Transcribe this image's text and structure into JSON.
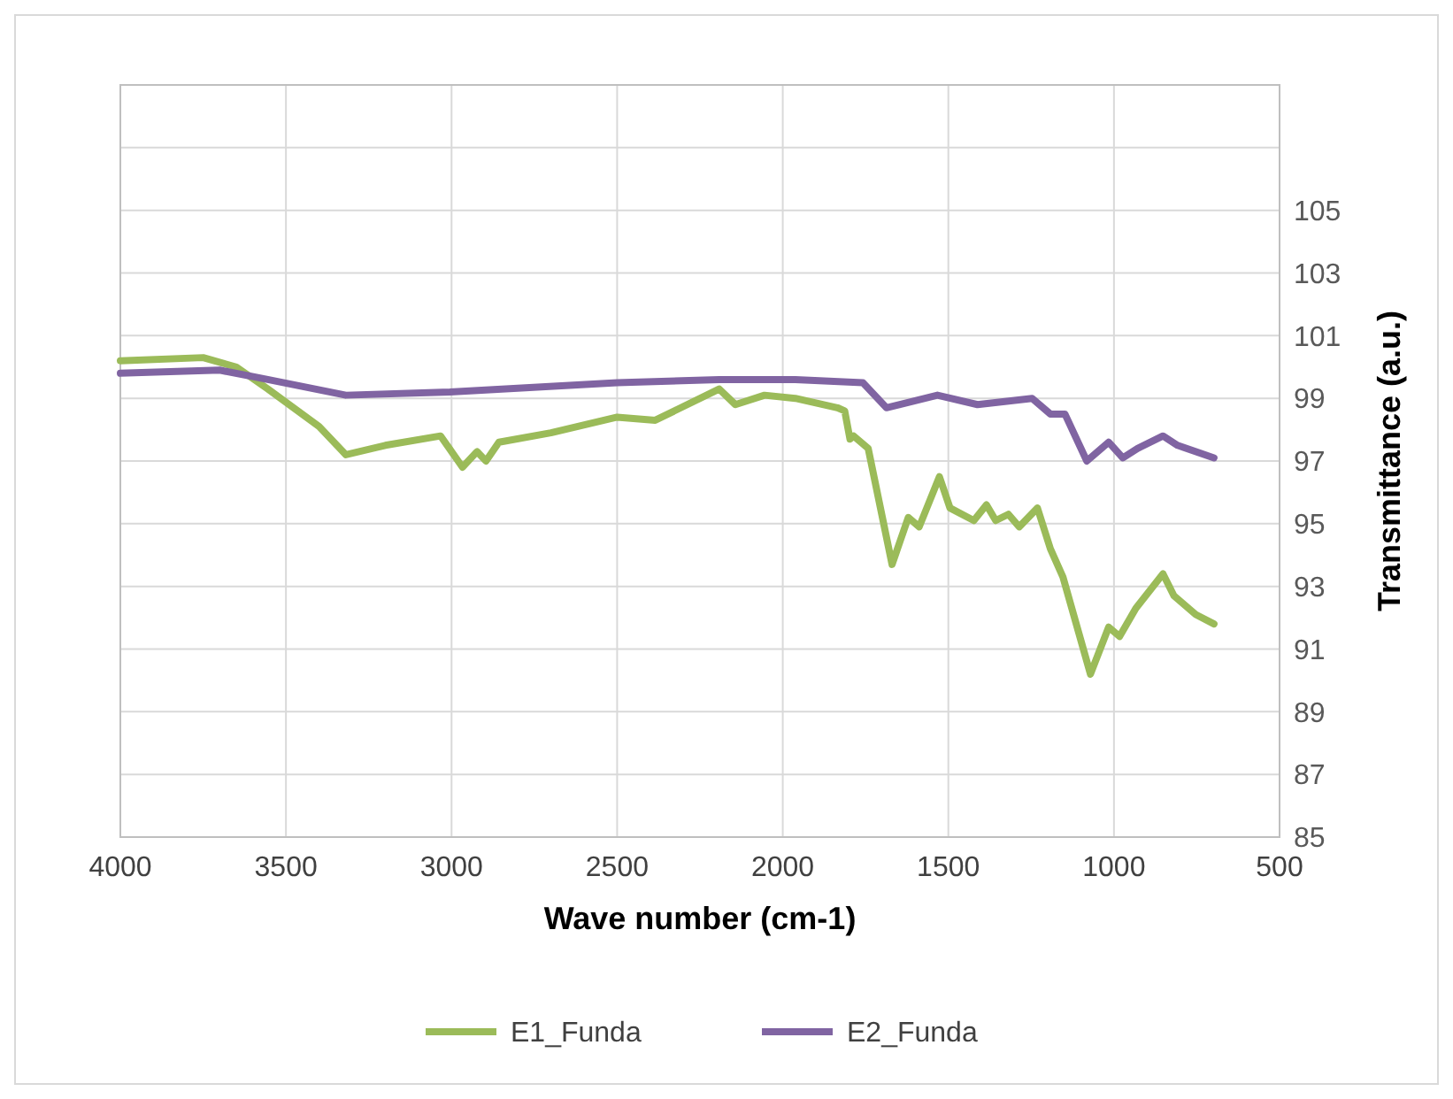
{
  "chart_data": {
    "type": "line",
    "xlabel": "Wave number (cm-1)",
    "ylabel": "Transmittance (a.u.)",
    "xlim": [
      4000,
      500
    ],
    "xticks": [
      4000,
      3500,
      3000,
      2500,
      2000,
      1500,
      1000,
      500
    ],
    "ylim": [
      85,
      109
    ],
    "yticks": [
      85,
      87,
      89,
      91,
      93,
      95,
      97,
      99,
      101,
      103,
      105,
      {
        "value": 107,
        "label": null
      }
    ],
    "grid": true,
    "legend": "bottom",
    "line_style": "solid",
    "marker": "none",
    "series": [
      {
        "name": "E1_Funda",
        "color": "#9bbb59",
        "x": [
          4000,
          3750,
          3650,
          3555,
          3400,
          3319,
          3200,
          3033,
          2967,
          2923,
          2896,
          2857,
          2700,
          2500,
          2385,
          2192,
          2143,
          2055,
          1962,
          1835,
          1813,
          1797,
          1786,
          1742,
          1670,
          1621,
          1588,
          1527,
          1495,
          1423,
          1385,
          1357,
          1319,
          1286,
          1231,
          1192,
          1154,
          1071,
          1016,
          983,
          934,
          852,
          819,
          753,
          698
        ],
        "values": [
          100.2,
          100.3,
          100.0,
          99.3,
          98.1,
          97.2,
          97.5,
          97.8,
          96.8,
          97.3,
          97.0,
          97.6,
          97.9,
          98.4,
          98.3,
          99.3,
          98.8,
          99.1,
          99.0,
          98.7,
          98.6,
          97.7,
          97.8,
          97.4,
          93.7,
          95.2,
          94.9,
          96.5,
          95.5,
          95.1,
          95.6,
          95.1,
          95.3,
          94.9,
          95.5,
          94.2,
          93.3,
          90.2,
          91.7,
          91.4,
          92.3,
          93.4,
          92.7,
          92.1,
          91.8
        ]
      },
      {
        "name": "E2_Funda",
        "color": "#8064a2",
        "x": [
          4000,
          3700,
          3555,
          3319,
          3005,
          2500,
          2192,
          2000,
          1962,
          1758,
          1687,
          1533,
          1412,
          1247,
          1192,
          1148,
          1082,
          1016,
          973,
          929,
          852,
          808,
          698
        ],
        "values": [
          99.8,
          99.9,
          99.6,
          99.1,
          99.2,
          99.5,
          99.6,
          99.6,
          99.6,
          99.5,
          98.7,
          99.1,
          98.8,
          99.0,
          98.5,
          98.5,
          97.0,
          97.6,
          97.1,
          97.4,
          97.8,
          97.5,
          97.1
        ]
      }
    ]
  }
}
